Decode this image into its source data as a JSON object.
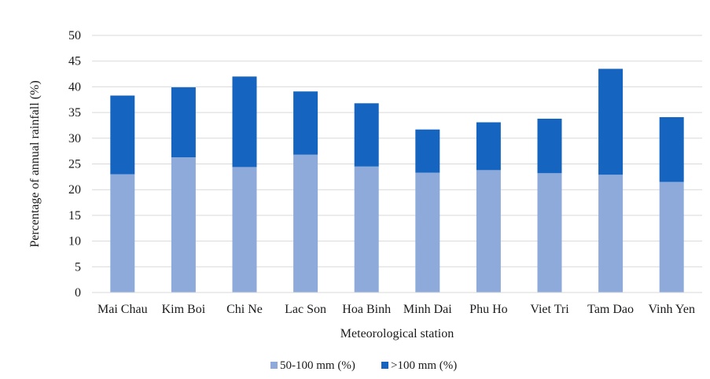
{
  "chart_data": {
    "type": "bar",
    "stacked": true,
    "title": "",
    "xlabel": "Meteorological station",
    "ylabel": "Percentage of annual rainfall (%)",
    "ylim": [
      0,
      50
    ],
    "yticks": [
      0,
      5,
      10,
      15,
      20,
      25,
      30,
      35,
      40,
      45,
      50
    ],
    "grid": true,
    "legend_position": "bottom",
    "categories": [
      "Mai Chau",
      "Kim Boi",
      "Chi Ne",
      "Lac Son",
      "Hoa Binh",
      "Minh Dai",
      "Phu Ho",
      "Viet Tri",
      "Tam Dao",
      "Vinh Yen"
    ],
    "series": [
      {
        "name": "50-100 mm (%)",
        "color": "#8eaadb",
        "values": [
          23.0,
          26.3,
          24.4,
          26.8,
          24.5,
          23.3,
          23.8,
          23.2,
          22.9,
          21.5
        ]
      },
      {
        "name": ">100 mm (%)",
        "color": "#1565c0",
        "values": [
          15.3,
          13.6,
          17.6,
          12.3,
          12.3,
          8.4,
          9.3,
          10.6,
          20.6,
          12.6
        ]
      }
    ]
  }
}
